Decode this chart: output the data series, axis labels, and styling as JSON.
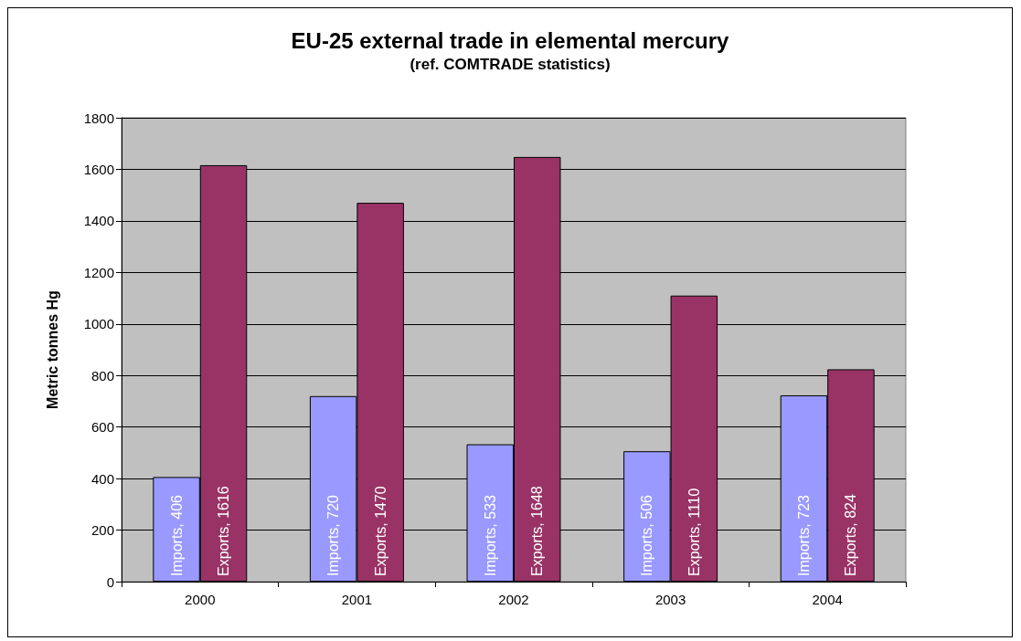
{
  "chart_data": {
    "type": "bar",
    "title": "EU-25 external trade in elemental mercury",
    "subtitle": "(ref. COMTRADE statistics)",
    "ylabel": "Metric tonnes Hg",
    "categories": [
      "2000",
      "2001",
      "2002",
      "2003",
      "2004"
    ],
    "series": [
      {
        "color": "#9999ff",
        "values": [
          406,
          720,
          533,
          506,
          723
        ],
        "value_labels": [
          "Imports, 406",
          "Imports, 720",
          "Imports, 533",
          "Imports, 506",
          "Imports, 723"
        ]
      },
      {
        "color": "#993366",
        "values": [
          1616,
          1470,
          1648,
          1110,
          824
        ],
        "value_labels": [
          "Exports, 1616",
          "Exports, 1470",
          "Exports, 1648",
          "Exports, 1110",
          "Exports, 824"
        ]
      }
    ],
    "ylim": [
      0,
      1800
    ],
    "yticks": [
      0,
      200,
      400,
      600,
      800,
      1000,
      1200,
      1400,
      1600,
      1800
    ],
    "grid": "y"
  }
}
